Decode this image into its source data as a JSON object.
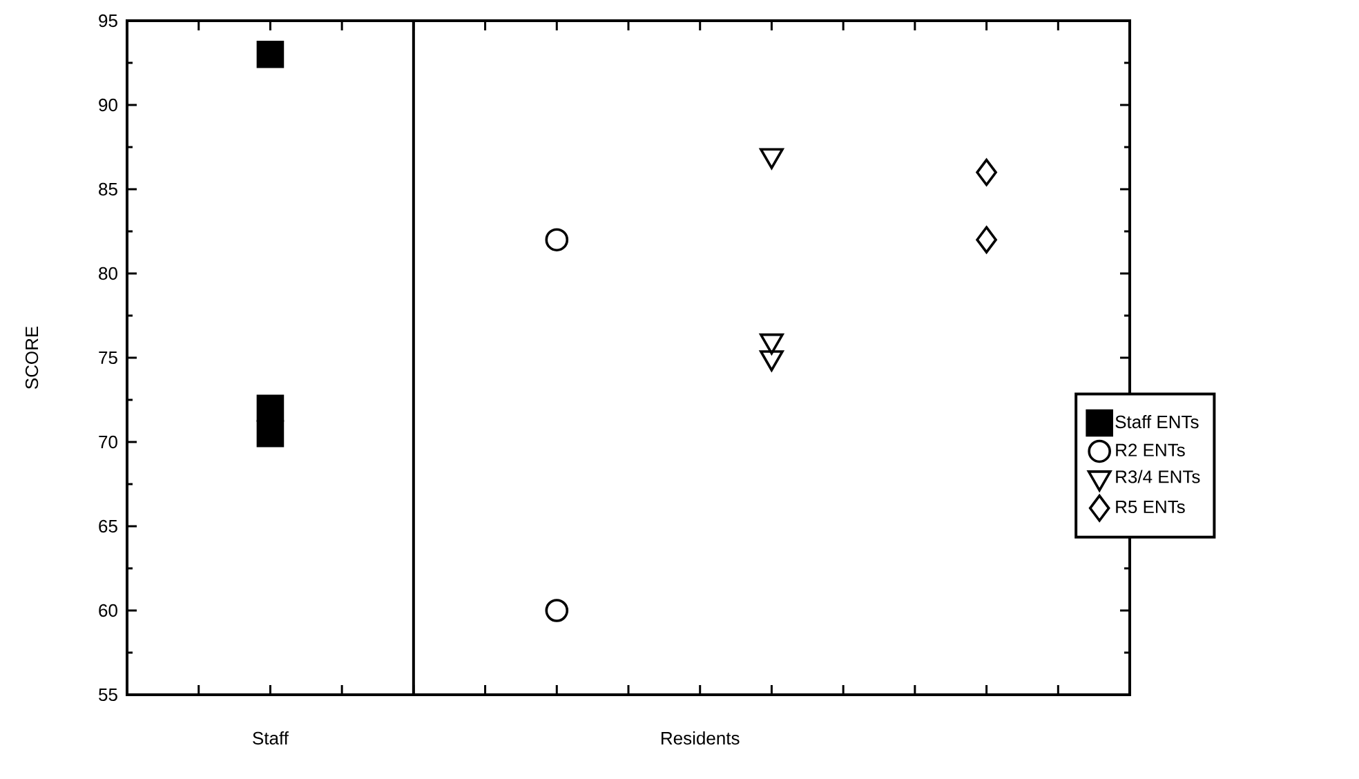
{
  "chart_data": {
    "type": "scatter",
    "ylabel": "SCORE",
    "categories": [
      null,
      null,
      "Staff",
      null,
      null,
      null,
      null,
      null,
      "Residents",
      null,
      null,
      null,
      null,
      null,
      null
    ],
    "ylim": [
      55,
      95
    ],
    "yticks": [
      55,
      60,
      65,
      70,
      75,
      80,
      85,
      90,
      95
    ],
    "legend": "right",
    "series": [
      {
        "name": "Staff ENTs",
        "color": "#000000",
        "marker": "square",
        "values": [
          null,
          null,
          93,
          null,
          null,
          null,
          null,
          null,
          null,
          null,
          null,
          null,
          null,
          null,
          null
        ]
      },
      {
        "color": "#000000",
        "marker": "square",
        "values": [
          null,
          null,
          72,
          null,
          null,
          null,
          null,
          null,
          null,
          null,
          null,
          null,
          null,
          null,
          null
        ]
      },
      {
        "color": "#000000",
        "marker": "square",
        "values": [
          null,
          null,
          70.5,
          null,
          null,
          null,
          null,
          null,
          null,
          null,
          null,
          null,
          null,
          null,
          null
        ]
      },
      {
        "name": "R2 ENTs",
        "color": "#000000",
        "marker": "circle",
        "values": [
          null,
          null,
          null,
          null,
          null,
          null,
          82,
          null,
          null,
          null,
          null,
          null,
          null,
          null,
          null
        ]
      },
      {
        "color": "#000000",
        "marker": "circle",
        "values": [
          null,
          null,
          null,
          null,
          null,
          null,
          60,
          null,
          null,
          null,
          null,
          null,
          null,
          null,
          null
        ]
      },
      {
        "name": "R3/4 ENTs",
        "color": "#000000",
        "marker": "triangle",
        "values": [
          null,
          null,
          null,
          null,
          null,
          null,
          null,
          null,
          null,
          87,
          null,
          null,
          null,
          null,
          null
        ]
      },
      {
        "color": "#000000",
        "marker": "triangle",
        "values": [
          null,
          null,
          null,
          null,
          null,
          null,
          null,
          null,
          null,
          76,
          null,
          null,
          null,
          null,
          null
        ]
      },
      {
        "color": "#000000",
        "marker": "triangle",
        "values": [
          null,
          null,
          null,
          null,
          null,
          null,
          null,
          null,
          null,
          75,
          null,
          null,
          null,
          null,
          null
        ]
      },
      {
        "name": "R5 ENTs",
        "color": "#000000",
        "marker": "diamond",
        "values": [
          null,
          null,
          null,
          null,
          null,
          null,
          null,
          null,
          null,
          null,
          null,
          null,
          86,
          null,
          null
        ]
      },
      {
        "color": "#000000",
        "marker": "diamond",
        "values": [
          null,
          null,
          null,
          null,
          null,
          null,
          null,
          null,
          null,
          null,
          null,
          null,
          82,
          null,
          null
        ]
      }
    ]
  }
}
